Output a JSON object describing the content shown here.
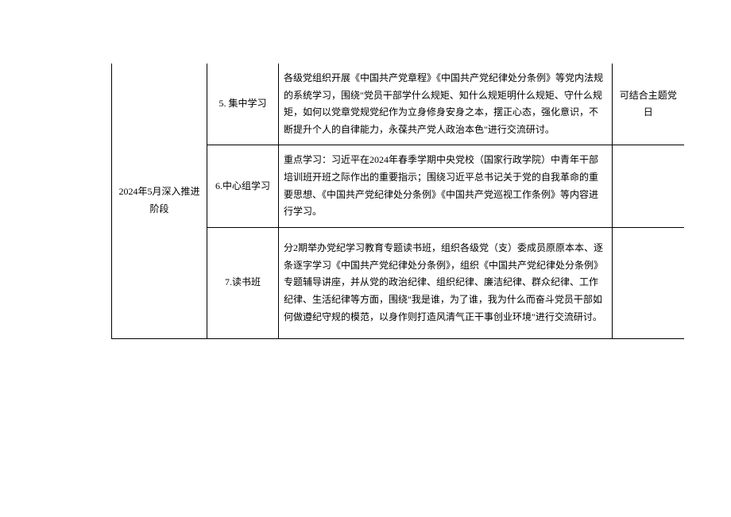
{
  "table": {
    "phase": "2024年5月深入推进阶段",
    "rows": [
      {
        "item": "5. 集中学习",
        "content": "各级党组织开展《中国共产党章程》《中国共产党纪律处分条例》等党内法规的系统学习，围绕\"党员干部学什么规矩、知什么规矩明什么规矩、守什么规矩，如何以党章党规党纪作为立身修身安身之本，摆正心态，强化意识，不断提升个人的自律能力，永葆共产党人政治本色\"进行交流研讨。",
        "note": "可结合主题党日"
      },
      {
        "item": "6.中心组学习",
        "content": "重点学习：习近平在2024年春季学期中央党校（国家行政学院）中青年干部培训班开班之际作出的重要指示；围绕习近平总书记关于党的自我革命的重要思想、《中国共产党纪律处分条例》《中国共产党巡视工作条例》等内容进行学习。",
        "note": ""
      },
      {
        "item": "7.读书班",
        "content": "分2期举办党纪学习教育专题读书班，组织各级党（支）委成员原原本本、逐条逐字学习《中国共产党纪律处分条例》，组织《中国共产党纪律处分条例》专题辅导讲座，并从党的政治纪律、组织纪律、廉洁纪律、群众纪律、工作纪律、生活纪律等方面，围绕\"我是谁，为了谁，我为什么而奋斗党员干部如何做遵纪守规的模范，以身作则打造风清气正干事创业环境\"进行交流研讨。",
        "note": ""
      }
    ]
  }
}
